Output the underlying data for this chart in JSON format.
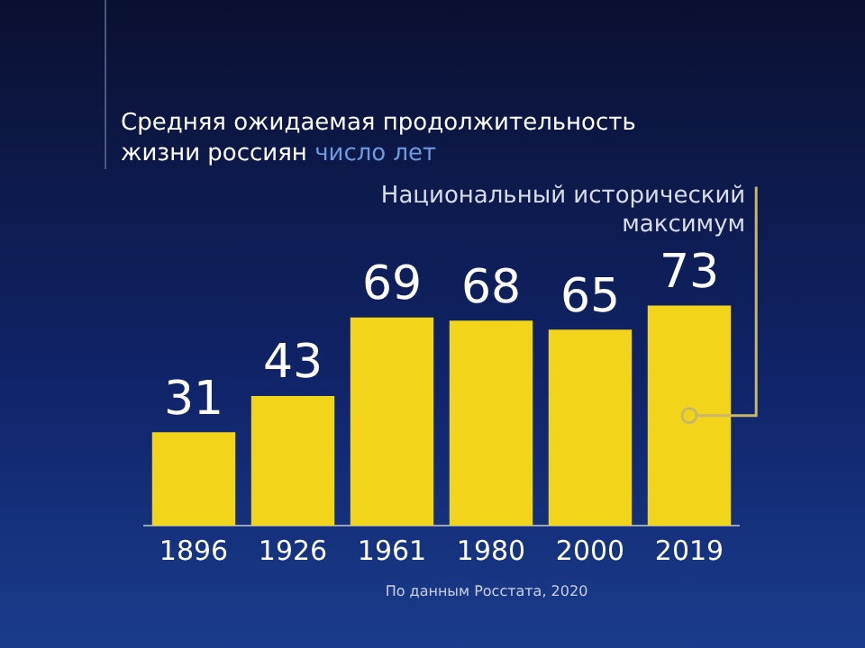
{
  "chart_data": {
    "type": "bar",
    "title": "Средняя ожидаемая продолжительность жизни россиян",
    "subtitle": "число лет",
    "categories": [
      "1896",
      "1926",
      "1961",
      "1980",
      "2000",
      "2019"
    ],
    "values": [
      31,
      43,
      69,
      68,
      65,
      73
    ],
    "color": "#f2d51a",
    "data_labels": true,
    "grid": false,
    "legend": false,
    "annotations": [
      {
        "text": "Национальный исторический максимум",
        "x": "2019",
        "y": 73
      },
      "По данным Росстата, 2020"
    ]
  }
}
